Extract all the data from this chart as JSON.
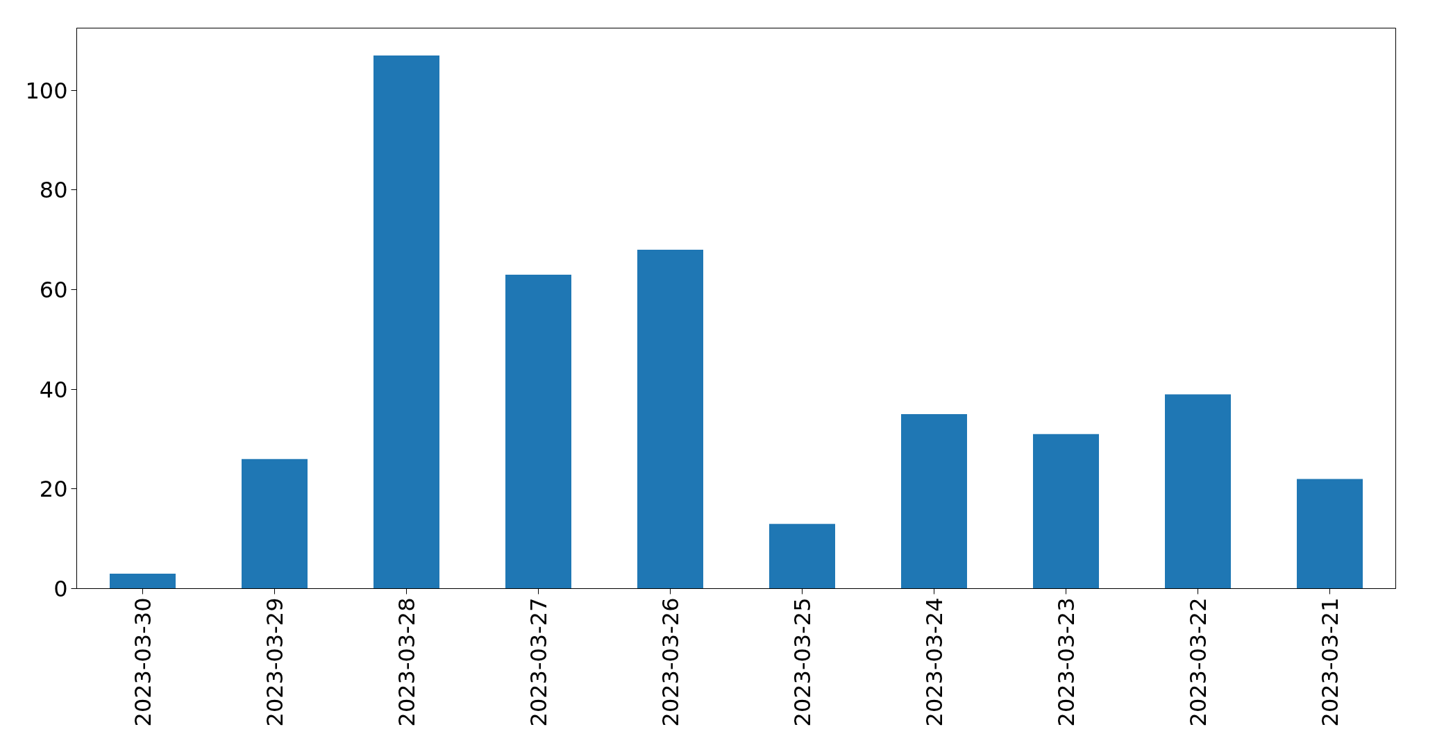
{
  "chart_data": {
    "type": "bar",
    "categories": [
      "2023-03-30",
      "2023-03-29",
      "2023-03-28",
      "2023-03-27",
      "2023-03-26",
      "2023-03-25",
      "2023-03-24",
      "2023-03-23",
      "2023-03-22",
      "2023-03-21"
    ],
    "values": [
      3,
      26,
      107,
      63,
      68,
      13,
      35,
      31,
      39,
      22
    ],
    "color": "#1f77b4",
    "ylim": [
      0,
      112.5
    ],
    "yticks": [
      0,
      20,
      40,
      60,
      80,
      100
    ],
    "grid": false
  }
}
